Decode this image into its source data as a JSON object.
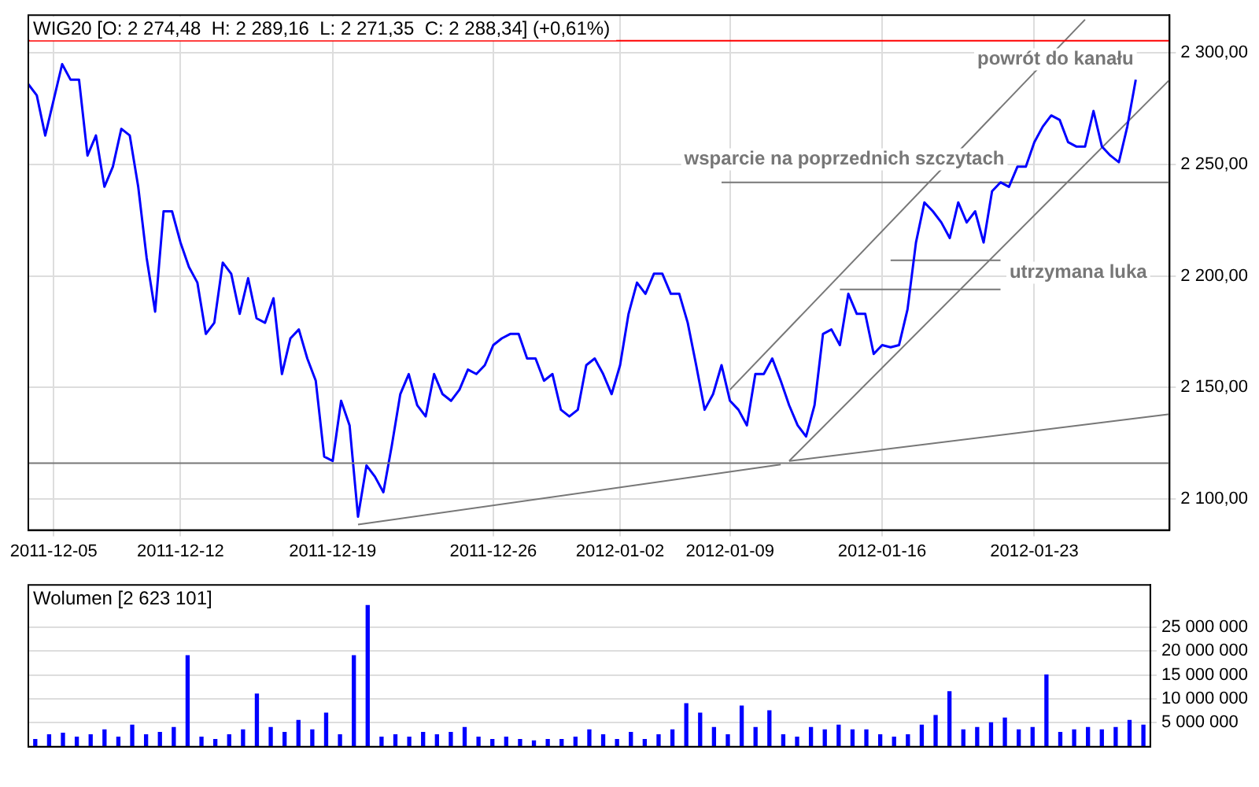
{
  "chart_data": [
    {
      "type": "line",
      "title": "WIG20 [O: 2 274,48  H: 2 289,16  L: 2 271,35  C: 2 288,34] (+0,61%)",
      "categories": [
        null,
        null,
        null,
        "2011-12-05",
        null,
        null,
        null,
        null,
        null,
        null,
        null,
        null,
        null,
        null,
        null,
        null,
        null,
        null,
        "2011-12-12",
        null,
        null,
        null,
        null,
        null,
        null,
        null,
        null,
        null,
        null,
        null,
        null,
        null,
        null,
        null,
        null,
        null,
        "2011-12-19",
        null,
        null,
        null,
        null,
        null,
        null,
        null,
        null,
        null,
        null,
        null,
        null,
        null,
        null,
        null,
        null,
        null,
        null,
        "2011-12-26",
        null,
        null,
        null,
        null,
        null,
        null,
        null,
        null,
        null,
        null,
        null,
        null,
        null,
        null,
        "2012-01-02",
        null,
        null,
        null,
        null,
        null,
        null,
        null,
        null,
        null,
        null,
        null,
        null,
        "2012-01-09",
        null,
        null,
        null,
        null,
        null,
        null,
        null,
        null,
        null,
        null,
        null,
        null,
        null,
        null,
        null,
        null,
        null,
        "2012-01-16",
        null,
        null,
        null,
        null,
        null,
        null,
        null,
        null,
        null,
        null,
        null,
        null,
        null,
        null,
        null,
        null,
        null,
        "2012-01-23",
        null,
        null,
        null,
        null,
        null,
        null,
        null,
        null,
        null,
        null,
        null,
        null,
        null,
        null,
        null,
        null
      ],
      "series": [
        {
          "color": "#0000ff",
          "values": [
            2286,
            2281,
            2263,
            2279,
            2295,
            2288,
            2288,
            2254,
            2263,
            2240,
            2249,
            2266,
            2263,
            2240,
            2208,
            2184,
            2229,
            2229,
            2215,
            2204,
            2197,
            2174,
            2179,
            2206,
            2201,
            2183,
            2199,
            2181,
            2179,
            2190,
            2156,
            2172,
            2176,
            2163,
            2153,
            2119,
            2117,
            2144,
            2133,
            2092,
            2115,
            2110,
            2103,
            2124,
            2147,
            2156,
            2142,
            2137,
            2156,
            2147,
            2144,
            2149,
            2158,
            2156,
            2160,
            2169,
            2172,
            2174,
            2174,
            2163,
            2163,
            2153,
            2156,
            2140,
            2137,
            2140,
            2160,
            2163,
            2156,
            2147,
            2160,
            2183,
            2197,
            2192,
            2201,
            2201,
            2192,
            2192,
            2179,
            2160,
            2140,
            2147,
            2160,
            2144,
            2140,
            2133,
            2156,
            2156,
            2163,
            2153,
            2142,
            2133,
            2128,
            2142,
            2174,
            2176,
            2169,
            2192,
            2183,
            2183,
            2165,
            2169,
            2168,
            2169,
            2185,
            2215,
            2233,
            2229,
            2224,
            2217,
            2233,
            2224,
            2229,
            2215,
            2238,
            2242,
            2240,
            2249,
            2249,
            2260,
            2267,
            2272,
            2270,
            2260,
            2258,
            2258,
            2274,
            2258,
            2254,
            2251,
            2267,
            2288,
            null,
            null,
            null,
            null
          ]
        },
        {
          "type": "line",
          "color": "#777777",
          "values": [
            null,
            null,
            null,
            null,
            null,
            null,
            null,
            null,
            null,
            null,
            null,
            null,
            null,
            null,
            null,
            null,
            null,
            null,
            null,
            null,
            null,
            null,
            null,
            null,
            null,
            null,
            null,
            null,
            null,
            null,
            null,
            null,
            null,
            null,
            null,
            null,
            null,
            null,
            null,
            null,
            null,
            null,
            null,
            null,
            null,
            null,
            null,
            null,
            null,
            null,
            null,
            null,
            null,
            null,
            null,
            null,
            null,
            null,
            null,
            null,
            null,
            null,
            null,
            null,
            null,
            null,
            null,
            null,
            null,
            null,
            null,
            null,
            null,
            null,
            null,
            null,
            null,
            null,
            null,
            null,
            null,
            null,
            2242,
            null,
            null,
            null,
            null,
            null,
            null,
            null,
            null,
            null,
            null,
            null,
            null,
            null,
            null,
            null,
            null,
            null,
            null,
            null,
            null,
            null,
            null,
            null,
            null,
            null,
            null,
            null,
            null,
            null,
            null,
            null,
            null,
            null,
            null,
            null,
            null,
            null,
            null,
            null,
            null,
            null,
            null,
            null,
            null,
            null,
            null,
            null,
            null,
            null,
            null,
            null,
            null,
            2242
          ]
        },
        {
          "type": "line",
          "color": "#777777",
          "values": [
            null,
            null,
            null,
            null,
            null,
            null,
            null,
            null,
            null,
            null,
            null,
            null,
            null,
            null,
            null,
            null,
            null,
            null,
            null,
            null,
            null,
            null,
            null,
            null,
            null,
            null,
            null,
            null,
            null,
            null,
            null,
            null,
            null,
            null,
            null,
            null,
            null,
            null,
            null,
            null,
            null,
            null,
            null,
            null,
            null,
            null,
            null,
            null,
            null,
            null,
            null,
            null,
            null,
            null,
            null,
            null,
            null,
            null,
            null,
            null,
            null,
            null,
            null,
            null,
            null,
            null,
            null,
            null,
            null,
            null,
            null,
            null,
            null,
            null,
            null,
            null,
            null,
            null,
            null,
            null,
            null,
            null,
            null,
            null,
            null,
            null,
            null,
            null,
            null,
            null,
            null,
            null,
            null,
            null,
            null,
            null,
            null,
            null,
            null,
            null,
            null,
            null,
            2207,
            null,
            null,
            null,
            null,
            null,
            null,
            null,
            null,
            null,
            null,
            null,
            null,
            2207,
            null,
            null,
            null,
            null,
            null,
            null,
            null,
            null,
            null,
            null,
            null,
            null,
            null,
            null,
            null,
            null,
            null,
            null,
            null,
            null
          ]
        },
        {
          "type": "line",
          "color": "#777777",
          "values": [
            null,
            null,
            null,
            null,
            null,
            null,
            null,
            null,
            null,
            null,
            null,
            null,
            null,
            null,
            null,
            null,
            null,
            null,
            null,
            null,
            null,
            null,
            null,
            null,
            null,
            null,
            null,
            null,
            null,
            null,
            null,
            null,
            null,
            null,
            null,
            null,
            null,
            null,
            null,
            null,
            null,
            null,
            null,
            null,
            null,
            null,
            null,
            null,
            null,
            null,
            null,
            null,
            null,
            null,
            null,
            null,
            null,
            null,
            null,
            null,
            null,
            null,
            null,
            null,
            null,
            null,
            null,
            null,
            null,
            null,
            null,
            null,
            null,
            null,
            null,
            null,
            null,
            null,
            null,
            null,
            null,
            null,
            null,
            null,
            null,
            null,
            null,
            null,
            null,
            null,
            null,
            null,
            null,
            null,
            null,
            null,
            2194,
            null,
            null,
            null,
            null,
            null,
            null,
            null,
            null,
            null,
            null,
            null,
            null,
            null,
            null,
            null,
            null,
            null,
            null,
            2194,
            null,
            null,
            null,
            null,
            null,
            null,
            null,
            null,
            null,
            null,
            null,
            null,
            null,
            null,
            null,
            null,
            null,
            null,
            null,
            null
          ]
        },
        {
          "type": "line",
          "color": "#777777",
          "values": [
            null,
            null,
            null,
            null,
            null,
            null,
            null,
            null,
            null,
            null,
            null,
            null,
            null,
            null,
            null,
            null,
            null,
            null,
            null,
            null,
            null,
            null,
            null,
            null,
            null,
            null,
            null,
            null,
            null,
            null,
            null,
            null,
            null,
            null,
            null,
            null,
            null,
            null,
            null,
            null,
            null,
            null,
            null,
            null,
            null,
            null,
            null,
            null,
            null,
            null,
            null,
            null,
            null,
            null,
            null,
            null,
            null,
            null,
            null,
            null,
            null,
            null,
            null,
            null,
            null,
            null,
            null,
            null,
            null,
            null,
            null,
            null,
            null,
            null,
            null,
            null,
            null,
            null,
            null,
            null,
            null,
            null,
            null,
            2149,
            null,
            null,
            null,
            null,
            null,
            null,
            null,
            null,
            null,
            null,
            null,
            null,
            null,
            null,
            null,
            null,
            null,
            null,
            null,
            null,
            null,
            null,
            null,
            null,
            null,
            null,
            null,
            null,
            null,
            null,
            null,
            null,
            null,
            null,
            null,
            null,
            null,
            null,
            null,
            null,
            null,
            2315,
            null,
            null,
            null,
            null,
            null,
            null,
            null,
            null,
            null,
            null
          ]
        },
        {
          "type": "line",
          "color": "#777777",
          "values": [
            null,
            null,
            null,
            null,
            null,
            null,
            null,
            null,
            null,
            null,
            null,
            null,
            null,
            null,
            null,
            null,
            null,
            null,
            null,
            null,
            null,
            null,
            null,
            null,
            null,
            null,
            null,
            null,
            null,
            null,
            null,
            null,
            null,
            null,
            null,
            null,
            null,
            null,
            null,
            null,
            null,
            null,
            null,
            null,
            null,
            null,
            null,
            null,
            null,
            null,
            null,
            null,
            null,
            null,
            null,
            null,
            null,
            null,
            null,
            null,
            null,
            null,
            null,
            null,
            null,
            null,
            null,
            null,
            null,
            null,
            null,
            null,
            null,
            null,
            null,
            null,
            null,
            null,
            null,
            null,
            null,
            null,
            null,
            null,
            null,
            null,
            null,
            null,
            null,
            null,
            2117,
            null,
            null,
            null,
            null,
            null,
            null,
            null,
            null,
            null,
            null,
            null,
            null,
            null,
            null,
            null,
            null,
            null,
            null,
            null,
            null,
            null,
            null,
            null,
            null,
            null,
            null,
            null,
            null,
            null,
            null,
            null,
            null,
            null,
            null,
            null,
            null,
            null,
            null,
            null,
            null,
            null,
            null,
            null,
            null,
            2288
          ]
        },
        {
          "type": "line",
          "color": "#777777",
          "values": [
            null,
            null,
            null,
            null,
            null,
            null,
            null,
            null,
            null,
            null,
            null,
            null,
            null,
            null,
            null,
            null,
            null,
            null,
            null,
            null,
            null,
            null,
            null,
            null,
            null,
            null,
            null,
            null,
            null,
            null,
            null,
            null,
            null,
            null,
            null,
            null,
            null,
            null,
            null,
            2088.5,
            null,
            null,
            null,
            null,
            null,
            null,
            null,
            null,
            null,
            null,
            null,
            null,
            null,
            null,
            null,
            null,
            null,
            null,
            null,
            null,
            null,
            null,
            null,
            null,
            null,
            null,
            null,
            null,
            null,
            null,
            null,
            null,
            null,
            null,
            null,
            null,
            null,
            null,
            null,
            null,
            null,
            null,
            null,
            null,
            null,
            null,
            null,
            null,
            null,
            2115.4,
            null,
            null,
            null,
            null,
            null,
            null,
            null,
            null,
            null,
            null,
            null,
            null,
            null,
            null,
            null,
            null,
            null,
            null,
            null,
            null,
            null,
            null,
            null,
            null,
            null,
            null,
            null,
            null,
            null,
            null,
            null,
            null,
            null,
            null,
            null,
            null,
            null,
            null,
            null,
            null,
            null,
            null,
            null,
            null,
            null,
            null
          ]
        },
        {
          "type": "line",
          "color": "#777777",
          "values": [
            null,
            null,
            null,
            null,
            null,
            null,
            null,
            null,
            null,
            null,
            null,
            null,
            null,
            null,
            null,
            null,
            null,
            null,
            null,
            null,
            null,
            null,
            null,
            null,
            null,
            null,
            null,
            null,
            null,
            null,
            null,
            null,
            null,
            null,
            null,
            null,
            null,
            null,
            null,
            null,
            null,
            null,
            null,
            null,
            null,
            null,
            null,
            null,
            null,
            null,
            null,
            null,
            null,
            null,
            null,
            null,
            null,
            null,
            null,
            null,
            null,
            null,
            null,
            null,
            null,
            null,
            null,
            null,
            null,
            null,
            null,
            null,
            null,
            null,
            null,
            null,
            null,
            null,
            null,
            null,
            null,
            null,
            null,
            null,
            null,
            null,
            null,
            null,
            null,
            null,
            2117,
            null,
            null,
            null,
            null,
            null,
            null,
            null,
            null,
            null,
            null,
            null,
            null,
            null,
            null,
            null,
            null,
            null,
            null,
            null,
            null,
            null,
            null,
            null,
            null,
            null,
            null,
            null,
            null,
            null,
            null,
            null,
            null,
            null,
            null,
            null,
            null,
            null,
            null,
            null,
            null,
            null,
            null,
            null,
            null,
            2138
          ]
        }
      ],
      "ylim": [
        2086,
        2317
      ],
      "yticks": [
        {
          "value": 2100,
          "label": "2 100,00"
        },
        {
          "value": 2150,
          "label": "2 150,00"
        },
        {
          "value": 2200,
          "label": "2 200,00"
        },
        {
          "value": 2250,
          "label": "2 250,00"
        },
        {
          "value": 2300,
          "label": "2 300,00"
        }
      ],
      "grid": true,
      "ref_lines": [
        {
          "axis": "y",
          "value": 2305.5,
          "color": "#ff0000"
        },
        {
          "axis": "y",
          "value": 2116,
          "color": "#777777"
        }
      ],
      "annotations": [
        "powrót do kanału",
        "wsparcie na poprzednich szczytach",
        "utrzymana luka"
      ]
    },
    {
      "type": "bar",
      "title": "Wolumen [2 623 101]",
      "color": "#0000ff",
      "categories": [
        null,
        null,
        null,
        null,
        null,
        null,
        null,
        null,
        null,
        null,
        null,
        null,
        null,
        null,
        null,
        null,
        null,
        null,
        null,
        null,
        null,
        null,
        null,
        null,
        null,
        null,
        null,
        null,
        null,
        null,
        null,
        null,
        null,
        null,
        null,
        null,
        null,
        null,
        null,
        null,
        null,
        null,
        null,
        null,
        null,
        null,
        null,
        null,
        null,
        null,
        null,
        null,
        null,
        null,
        null,
        null,
        null,
        null,
        null,
        null,
        null,
        null,
        null,
        null,
        null,
        null,
        null,
        null,
        null,
        null,
        null,
        null,
        null,
        null,
        null,
        null,
        null,
        null,
        null,
        null,
        null
      ],
      "values": [
        1500000,
        2500000,
        2800000,
        2000000,
        2500000,
        3500000,
        2000000,
        4500000,
        2500000,
        3000000,
        4000000,
        19000000,
        2000000,
        1500000,
        2500000,
        3500000,
        11000000,
        4000000,
        3000000,
        5500000,
        3500000,
        7000000,
        2500000,
        19000000,
        29500000,
        2000000,
        2500000,
        2000000,
        3000000,
        2500000,
        3000000,
        4000000,
        2000000,
        1500000,
        2000000,
        1500000,
        1200000,
        1500000,
        1500000,
        2000000,
        3500000,
        2500000,
        1500000,
        3000000,
        1500000,
        2500000,
        3500000,
        9000000,
        7000000,
        4000000,
        2500000,
        8500000,
        4000000,
        7500000,
        2500000,
        2000000,
        4000000,
        3500000,
        4500000,
        3500000,
        3500000,
        2500000,
        2000000,
        2500000,
        4500000,
        6500000,
        11500000,
        3500000,
        4000000,
        5000000,
        6000000,
        3500000,
        4000000,
        15000000,
        3000000,
        3500000,
        4000000,
        3500000,
        4000000,
        5500000,
        4500000
      ],
      "ylim": [
        0,
        33800000
      ],
      "yticks": [
        {
          "value": 5000000,
          "label": "5 000 000"
        },
        {
          "value": 10000000,
          "label": "10 000 000"
        },
        {
          "value": 15000000,
          "label": "15 000 000"
        },
        {
          "value": 20000000,
          "label": "20 000 000"
        },
        {
          "value": 25000000,
          "label": "25 000 000"
        }
      ],
      "tick_labels": "y",
      "grid": "y"
    }
  ]
}
